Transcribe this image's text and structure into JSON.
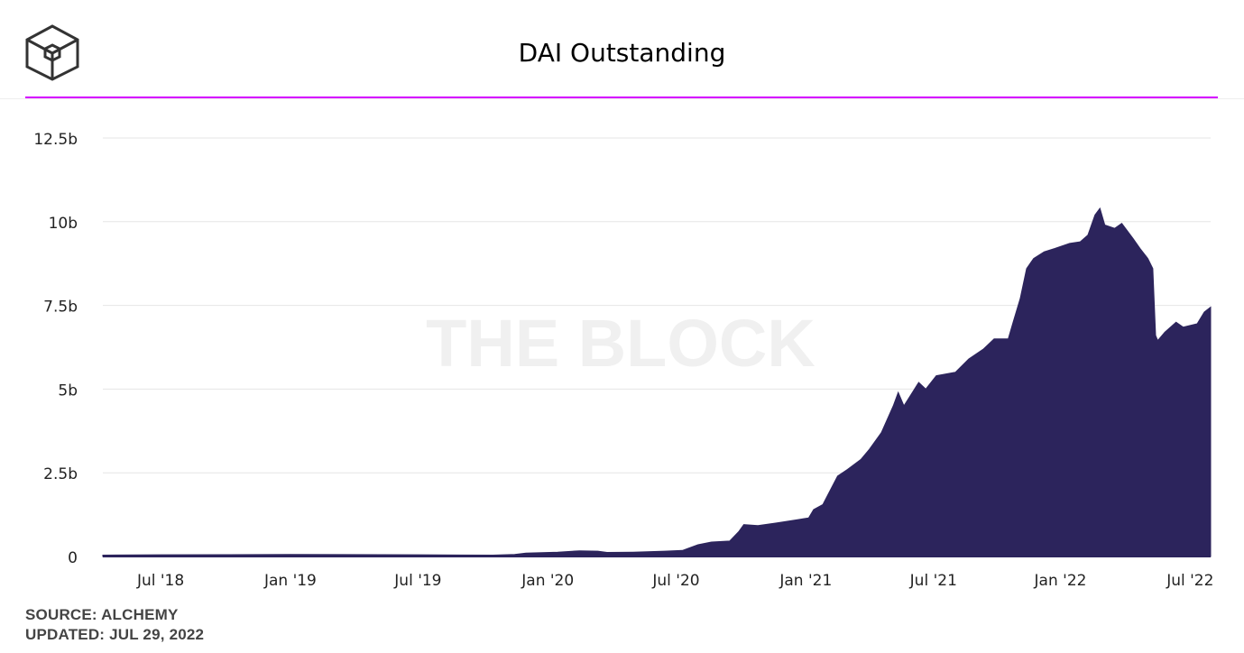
{
  "header": {
    "logo_icon": "the-block-cube-icon",
    "title": "DAI Outstanding"
  },
  "watermark": "THE BLOCK",
  "footer": {
    "source": "SOURCE: ALCHEMY",
    "updated": "UPDATED: JUL 29, 2022"
  },
  "colors": {
    "fill": "#2c245c",
    "accent_rule": "#d400ff",
    "grid": "#e6e6e6",
    "watermark": "#f0f0f0"
  },
  "chart_data": {
    "type": "area",
    "title": "DAI Outstanding",
    "xlabel": "",
    "ylabel": "",
    "grid": true,
    "legend": "none",
    "xlim": [
      "2018-04-10",
      "2022-07-29"
    ],
    "ylim": [
      0,
      12.5
    ],
    "y_unit": "b",
    "yticks": [
      {
        "value": 0,
        "label": "0"
      },
      {
        "value": 2.5,
        "label": "2.5b"
      },
      {
        "value": 5,
        "label": "5b"
      },
      {
        "value": 7.5,
        "label": "7.5b"
      },
      {
        "value": 10,
        "label": "10b"
      },
      {
        "value": 12.5,
        "label": "12.5b"
      }
    ],
    "xticks": [
      {
        "date": "2018-07-01",
        "label": "Jul '18"
      },
      {
        "date": "2019-01-01",
        "label": "Jan '19"
      },
      {
        "date": "2019-07-01",
        "label": "Jul '19"
      },
      {
        "date": "2020-01-01",
        "label": "Jan '20"
      },
      {
        "date": "2020-07-01",
        "label": "Jul '20"
      },
      {
        "date": "2021-01-01",
        "label": "Jan '21"
      },
      {
        "date": "2021-07-01",
        "label": "Jul '21"
      },
      {
        "date": "2021-12-28",
        "label": "Jan '22"
      },
      {
        "date": "2022-06-30",
        "label": "Jul '22"
      }
    ],
    "series": [
      {
        "color": "#2c245c",
        "points": [
          [
            "2018-04-10",
            0.04
          ],
          [
            "2018-07-01",
            0.05
          ],
          [
            "2019-01-01",
            0.06
          ],
          [
            "2019-07-01",
            0.05
          ],
          [
            "2019-10-15",
            0.04
          ],
          [
            "2019-11-15",
            0.06
          ],
          [
            "2019-12-01",
            0.1
          ],
          [
            "2020-01-15",
            0.13
          ],
          [
            "2020-02-15",
            0.17
          ],
          [
            "2020-03-12",
            0.16
          ],
          [
            "2020-03-25",
            0.12
          ],
          [
            "2020-05-01",
            0.13
          ],
          [
            "2020-06-15",
            0.16
          ],
          [
            "2020-07-10",
            0.18
          ],
          [
            "2020-08-01",
            0.35
          ],
          [
            "2020-08-20",
            0.43
          ],
          [
            "2020-09-15",
            0.46
          ],
          [
            "2020-09-28",
            0.75
          ],
          [
            "2020-10-05",
            0.95
          ],
          [
            "2020-10-25",
            0.92
          ],
          [
            "2020-11-20",
            1.0
          ],
          [
            "2020-12-20",
            1.1
          ],
          [
            "2021-01-05",
            1.15
          ],
          [
            "2021-01-12",
            1.4
          ],
          [
            "2021-01-25",
            1.55
          ],
          [
            "2021-02-05",
            2.0
          ],
          [
            "2021-02-15",
            2.4
          ],
          [
            "2021-03-01",
            2.6
          ],
          [
            "2021-03-20",
            2.9
          ],
          [
            "2021-04-01",
            3.2
          ],
          [
            "2021-04-18",
            3.7
          ],
          [
            "2021-05-05",
            4.5
          ],
          [
            "2021-05-12",
            4.9
          ],
          [
            "2021-05-20",
            4.5
          ],
          [
            "2021-06-01",
            4.9
          ],
          [
            "2021-06-10",
            5.2
          ],
          [
            "2021-06-20",
            5.0
          ],
          [
            "2021-07-05",
            5.4
          ],
          [
            "2021-08-01",
            5.5
          ],
          [
            "2021-08-20",
            5.9
          ],
          [
            "2021-09-10",
            6.2
          ],
          [
            "2021-09-25",
            6.5
          ],
          [
            "2021-10-15",
            6.5
          ],
          [
            "2021-10-22",
            7.0
          ],
          [
            "2021-11-01",
            7.7
          ],
          [
            "2021-11-10",
            8.6
          ],
          [
            "2021-11-20",
            8.9
          ],
          [
            "2021-12-05",
            9.1
          ],
          [
            "2021-12-20",
            9.2
          ],
          [
            "2022-01-10",
            9.35
          ],
          [
            "2022-01-25",
            9.4
          ],
          [
            "2022-02-05",
            9.6
          ],
          [
            "2022-02-15",
            10.2
          ],
          [
            "2022-02-22",
            10.4
          ],
          [
            "2022-03-01",
            9.9
          ],
          [
            "2022-03-15",
            9.8
          ],
          [
            "2022-03-25",
            9.95
          ],
          [
            "2022-04-10",
            9.5
          ],
          [
            "2022-04-20",
            9.2
          ],
          [
            "2022-05-01",
            8.9
          ],
          [
            "2022-05-08",
            8.6
          ],
          [
            "2022-05-12",
            6.6
          ],
          [
            "2022-05-15",
            6.45
          ],
          [
            "2022-05-25",
            6.7
          ],
          [
            "2022-06-10",
            7.0
          ],
          [
            "2022-06-20",
            6.85
          ],
          [
            "2022-07-10",
            6.95
          ],
          [
            "2022-07-20",
            7.3
          ],
          [
            "2022-07-29",
            7.45
          ]
        ]
      }
    ]
  }
}
